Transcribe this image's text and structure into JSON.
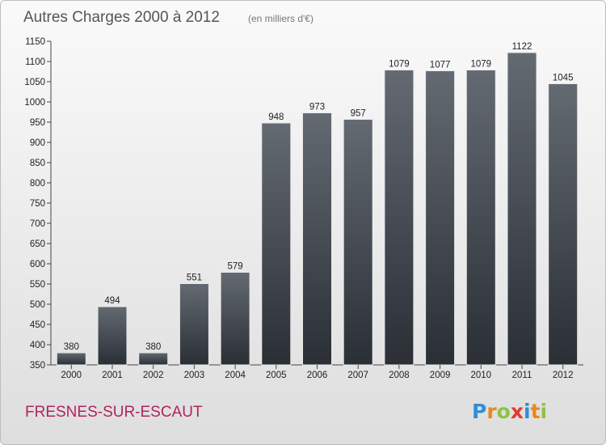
{
  "chart_data": {
    "type": "bar",
    "title": "Autres Charges 2000 à 2012",
    "subtitle": "(en milliers d'€)",
    "xlabel": "",
    "ylabel": "",
    "categories": [
      "2000",
      "2001",
      "2002",
      "2003",
      "2004",
      "2005",
      "2006",
      "2007",
      "2008",
      "2009",
      "2010",
      "2011",
      "2012"
    ],
    "values": [
      380,
      494,
      380,
      551,
      579,
      948,
      973,
      957,
      1079,
      1077,
      1079,
      1122,
      1045
    ],
    "value_labels": [
      "380",
      "494",
      "380",
      "551",
      "579",
      "948",
      "973",
      "957",
      "1079",
      "1077",
      "1079",
      "1122",
      "1045"
    ],
    "ylim": [
      350,
      1150
    ],
    "yticks": [
      350,
      400,
      450,
      500,
      550,
      600,
      650,
      700,
      750,
      800,
      850,
      900,
      950,
      1000,
      1050,
      1100,
      1150
    ],
    "ytick_labels": [
      "350",
      "400",
      "450",
      "500",
      "550",
      "600",
      "650",
      "700",
      "750",
      "800",
      "850",
      "900",
      "950",
      "1000",
      "1050",
      "1100",
      "1150"
    ],
    "grid": false,
    "bar_color_top": "#646a72",
    "bar_color_bottom": "#2a2f36"
  },
  "footer": {
    "place_name": "FRESNES-SUR-ESCAUT",
    "place_color": "#b0245c",
    "logo_letters": [
      {
        "ch": "P",
        "color": "#2f8fd8"
      },
      {
        "ch": "r",
        "color": "#e8891c"
      },
      {
        "ch": "o",
        "color": "#8bc53f"
      },
      {
        "ch": "x",
        "color": "#e23b2e"
      },
      {
        "ch": "i",
        "color": "#2f8fd8"
      },
      {
        "ch": "t",
        "color": "#e8891c"
      },
      {
        "ch": "i",
        "color": "#8bc53f"
      }
    ]
  }
}
